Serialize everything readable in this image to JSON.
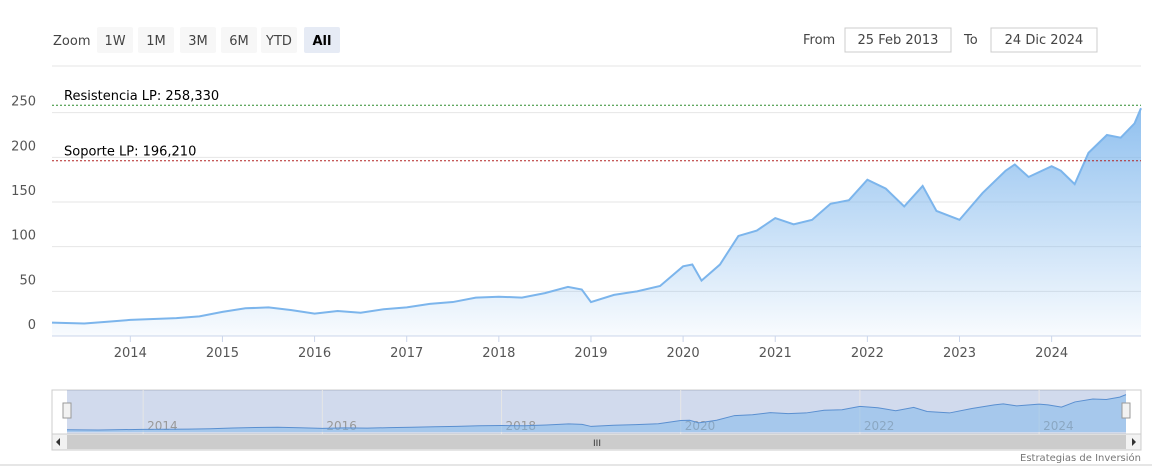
{
  "chart_data": {
    "type": "area",
    "range_selector": {
      "zoom_label": "Zoom",
      "buttons": [
        "1W",
        "1M",
        "3M",
        "6M",
        "YTD",
        "All"
      ],
      "selected": 5,
      "from_label": "From",
      "from": "25 Feb 2013",
      "to_label": "To",
      "to": "24 Dic 2024"
    },
    "x": [
      2013.15,
      2013.5,
      2013.75,
      2014,
      2014.25,
      2014.5,
      2014.75,
      2015,
      2015.25,
      2015.5,
      2015.75,
      2016,
      2016.25,
      2016.5,
      2016.75,
      2017,
      2017.25,
      2017.5,
      2017.75,
      2018,
      2018.25,
      2018.5,
      2018.75,
      2018.9,
      2019,
      2019.25,
      2019.5,
      2019.75,
      2020,
      2020.1,
      2020.2,
      2020.4,
      2020.6,
      2020.8,
      2021,
      2021.2,
      2021.4,
      2021.6,
      2021.8,
      2022,
      2022.2,
      2022.4,
      2022.6,
      2022.75,
      2023,
      2023.25,
      2023.5,
      2023.6,
      2023.75,
      2024,
      2024.1,
      2024.25,
      2024.4,
      2024.6,
      2024.75,
      2024.9,
      2024.97
    ],
    "values": [
      15,
      14,
      16,
      18,
      19,
      20,
      22,
      27,
      31,
      32,
      29,
      25,
      28,
      26,
      30,
      32,
      36,
      38,
      43,
      44,
      43,
      48,
      55,
      52,
      38,
      46,
      50,
      56,
      78,
      80,
      62,
      80,
      112,
      118,
      132,
      125,
      130,
      148,
      152,
      175,
      165,
      145,
      168,
      140,
      130,
      160,
      185,
      192,
      178,
      190,
      185,
      170,
      205,
      225,
      222,
      238,
      255
    ],
    "color": "#7cb5ec",
    "xlim": [
      2013.15,
      2024.97
    ],
    "xticks": [
      2014,
      2015,
      2016,
      2017,
      2018,
      2019,
      2020,
      2021,
      2022,
      2023,
      2024
    ],
    "ylim": [
      0,
      300
    ],
    "yticks": [
      0,
      50,
      100,
      150,
      200,
      250
    ],
    "grid": true,
    "plot_lines": [
      {
        "value": 258.33,
        "label": "Resistencia LP: 258,330",
        "color": "#2e8b2e"
      },
      {
        "value": 196.21,
        "label": "Soporte LP: 196,210",
        "color": "#b22222"
      }
    ],
    "navigator_xticks": [
      2014,
      2016,
      2018,
      2020,
      2022,
      2024
    ],
    "credits": "Estrategias de Inversión"
  }
}
